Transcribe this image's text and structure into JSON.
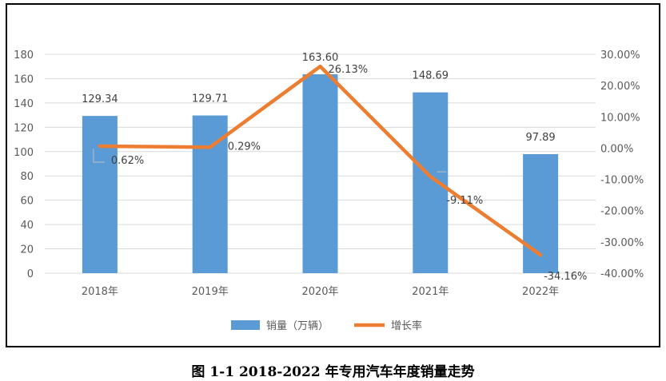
{
  "caption": "图 1-1   2018-2022 年专用汽车年度销量走势",
  "chart_data": {
    "type": "bar",
    "categories": [
      "2018年",
      "2019年",
      "2020年",
      "2021年",
      "2022年"
    ],
    "series": [
      {
        "name": "销量（万辆）",
        "type": "bar",
        "axis": "left",
        "color": "#5B9BD5",
        "values": [
          129.34,
          129.71,
          163.6,
          148.69,
          97.89
        ],
        "labels": [
          "129.34",
          "129.71",
          "163.60",
          "148.69",
          "97.89"
        ]
      },
      {
        "name": "增长率",
        "type": "line",
        "axis": "right",
        "color": "#ED7D31",
        "values": [
          0.62,
          0.29,
          26.13,
          -9.11,
          -34.16
        ],
        "labels": [
          "0.62%",
          "0.29%",
          "26.13%",
          "-9.11%",
          "-34.16%"
        ]
      }
    ],
    "y_left": {
      "range": [
        0,
        180
      ],
      "ticks": [
        0,
        20,
        40,
        60,
        80,
        100,
        120,
        140,
        160,
        180
      ],
      "tick_labels": [
        "0",
        "20",
        "40",
        "60",
        "80",
        "100",
        "120",
        "140",
        "160",
        "180"
      ]
    },
    "y_right": {
      "range": [
        -40,
        30
      ],
      "ticks": [
        -40,
        -30,
        -20,
        -10,
        0,
        10,
        20,
        30
      ],
      "tick_labels": [
        "-40.00%",
        "-30.00%",
        "-20.00%",
        "-10.00%",
        "0.00%",
        "10.00%",
        "20.00%",
        "30.00%"
      ]
    },
    "grid": true,
    "legend": "bottom",
    "title": "",
    "xlabel": "",
    "ylabel": ""
  }
}
